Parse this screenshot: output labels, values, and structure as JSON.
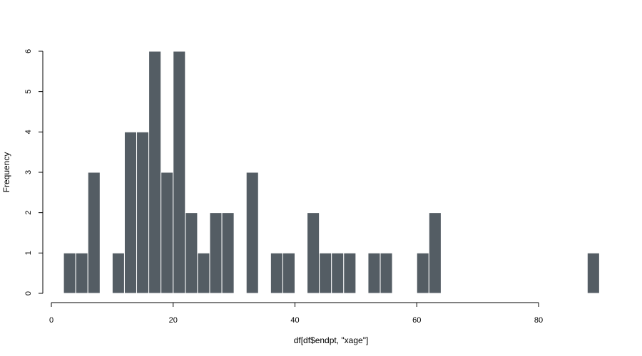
{
  "chart_data": {
    "type": "bar",
    "subtype": "histogram",
    "title": "",
    "xlabel": "df[df$endpt, \"xage\"]",
    "ylabel": "Frequency",
    "bin_width": 2,
    "bins": [
      {
        "x0": 2,
        "x1": 4,
        "count": 1
      },
      {
        "x0": 4,
        "x1": 6,
        "count": 1
      },
      {
        "x0": 6,
        "x1": 8,
        "count": 3
      },
      {
        "x0": 8,
        "x1": 10,
        "count": 0
      },
      {
        "x0": 10,
        "x1": 12,
        "count": 1
      },
      {
        "x0": 12,
        "x1": 14,
        "count": 4
      },
      {
        "x0": 14,
        "x1": 16,
        "count": 4
      },
      {
        "x0": 16,
        "x1": 18,
        "count": 6
      },
      {
        "x0": 18,
        "x1": 20,
        "count": 3
      },
      {
        "x0": 20,
        "x1": 22,
        "count": 6
      },
      {
        "x0": 22,
        "x1": 24,
        "count": 2
      },
      {
        "x0": 24,
        "x1": 26,
        "count": 1
      },
      {
        "x0": 26,
        "x1": 28,
        "count": 2
      },
      {
        "x0": 28,
        "x1": 30,
        "count": 2
      },
      {
        "x0": 30,
        "x1": 32,
        "count": 0
      },
      {
        "x0": 32,
        "x1": 34,
        "count": 3
      },
      {
        "x0": 34,
        "x1": 36,
        "count": 0
      },
      {
        "x0": 36,
        "x1": 38,
        "count": 1
      },
      {
        "x0": 38,
        "x1": 40,
        "count": 1
      },
      {
        "x0": 40,
        "x1": 42,
        "count": 0
      },
      {
        "x0": 42,
        "x1": 44,
        "count": 2
      },
      {
        "x0": 44,
        "x1": 46,
        "count": 1
      },
      {
        "x0": 46,
        "x1": 48,
        "count": 1
      },
      {
        "x0": 48,
        "x1": 50,
        "count": 1
      },
      {
        "x0": 50,
        "x1": 52,
        "count": 0
      },
      {
        "x0": 52,
        "x1": 54,
        "count": 1
      },
      {
        "x0": 54,
        "x1": 56,
        "count": 1
      },
      {
        "x0": 56,
        "x1": 58,
        "count": 0
      },
      {
        "x0": 58,
        "x1": 60,
        "count": 0
      },
      {
        "x0": 60,
        "x1": 62,
        "count": 1
      },
      {
        "x0": 62,
        "x1": 64,
        "count": 2
      },
      {
        "x0": 88,
        "x1": 90,
        "count": 1
      }
    ],
    "xlim": [
      0,
      80
    ],
    "ylim": [
      0,
      6
    ],
    "x_ticks": [
      0,
      20,
      40,
      60,
      80
    ],
    "y_ticks": [
      0,
      1,
      2,
      3,
      4,
      5,
      6
    ],
    "grid": false,
    "legend": "none",
    "bar_color": "#545d64",
    "bar_border_color": "#ffffff"
  }
}
